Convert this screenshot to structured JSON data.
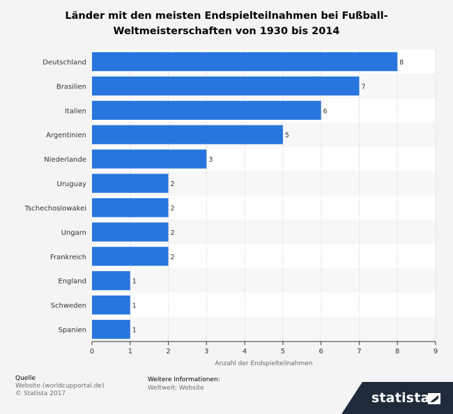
{
  "chart_data": {
    "type": "bar",
    "orientation": "horizontal",
    "title_line1": "Länder mit den meisten Endspielteilnahmen bei Fußball-",
    "title_line2": "Weltmeisterschaften von 1930 bis 2014",
    "xlabel": "Anzahl der Endspielteilnahmen",
    "ylabel": "",
    "xlim": [
      0,
      9
    ],
    "xticks": [
      "0",
      "1",
      "2",
      "3",
      "4",
      "5",
      "6",
      "7",
      "8",
      "9"
    ],
    "categories": [
      "Deutschland",
      "Brasilien",
      "Italien",
      "Argentinien",
      "Niederlande",
      "Uruguay",
      "Tschechoslowakei",
      "Ungarn",
      "Frankreich",
      "England",
      "Schweden",
      "Spanien"
    ],
    "values": [
      8,
      7,
      6,
      5,
      3,
      2,
      2,
      2,
      2,
      1,
      1,
      1
    ],
    "bar_color": "#2876dd",
    "grid": true
  },
  "footer": {
    "source_label": "Quelle",
    "source_line1": "Website (worldcupportal.de)",
    "source_line2": "© Statista 2017",
    "info_label": "Weitere Informationen:",
    "info_text": "Weltweit; Website",
    "brand": "statista"
  }
}
